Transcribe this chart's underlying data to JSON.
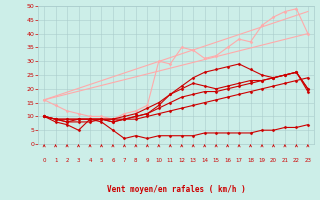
{
  "bg_color": "#cceee8",
  "grid_color": "#aacccc",
  "xlabel": "Vent moyen/en rafales ( km/h )",
  "xlabel_color": "#cc0000",
  "tick_color": "#cc0000",
  "xlim": [
    -0.5,
    23.5
  ],
  "ylim": [
    0,
    50
  ],
  "yticks": [
    0,
    5,
    10,
    15,
    20,
    25,
    30,
    35,
    40,
    45,
    50
  ],
  "xticks": [
    0,
    1,
    2,
    3,
    4,
    5,
    6,
    7,
    8,
    9,
    10,
    11,
    12,
    13,
    14,
    15,
    16,
    17,
    18,
    19,
    20,
    21,
    22,
    23
  ],
  "series": [
    {
      "x": [
        0,
        23
      ],
      "y": [
        16,
        40
      ],
      "color": "#ffaaaa",
      "lw": 0.8,
      "marker": null
    },
    {
      "x": [
        0,
        23
      ],
      "y": [
        16,
        48
      ],
      "color": "#ffaaaa",
      "lw": 0.8,
      "marker": null
    },
    {
      "x": [
        0,
        1,
        2,
        3,
        4,
        5,
        6,
        7,
        8,
        9,
        10,
        11,
        12,
        13,
        14,
        15,
        16,
        17,
        18,
        19,
        20,
        21,
        22,
        23
      ],
      "y": [
        16,
        14,
        12,
        11,
        10,
        10,
        9,
        11,
        12,
        14,
        30,
        29,
        35,
        34,
        31,
        32,
        35,
        38,
        37,
        43,
        46,
        48,
        49,
        40
      ],
      "color": "#ffaaaa",
      "lw": 0.8,
      "marker": "D",
      "ms": 1.5
    },
    {
      "x": [
        0,
        1,
        2,
        3,
        4,
        5,
        6,
        7,
        8,
        9,
        10,
        11,
        12,
        13,
        14,
        15,
        16,
        17,
        18,
        19,
        20,
        21,
        22,
        23
      ],
      "y": [
        10,
        8,
        7,
        5,
        9,
        8,
        5,
        2,
        3,
        2,
        3,
        3,
        3,
        3,
        4,
        4,
        4,
        4,
        4,
        5,
        5,
        6,
        6,
        7
      ],
      "color": "#cc0000",
      "lw": 0.8,
      "marker": "D",
      "ms": 1.5
    },
    {
      "x": [
        0,
        1,
        2,
        3,
        4,
        5,
        6,
        7,
        8,
        9,
        10,
        11,
        12,
        13,
        14,
        15,
        16,
        17,
        18,
        19,
        20,
        21,
        22,
        23
      ],
      "y": [
        10,
        9,
        9,
        9,
        9,
        9,
        9,
        9,
        10,
        11,
        13,
        15,
        17,
        18,
        19,
        19,
        20,
        21,
        22,
        23,
        24,
        25,
        26,
        19
      ],
      "color": "#cc0000",
      "lw": 0.8,
      "marker": "D",
      "ms": 1.5
    },
    {
      "x": [
        0,
        1,
        2,
        3,
        4,
        5,
        6,
        7,
        8,
        9,
        10,
        11,
        12,
        13,
        14,
        15,
        16,
        17,
        18,
        19,
        20,
        21,
        22,
        23
      ],
      "y": [
        10,
        9,
        8,
        8,
        8,
        9,
        8,
        9,
        10,
        11,
        14,
        18,
        20,
        22,
        21,
        20,
        21,
        22,
        23,
        23,
        24,
        25,
        26,
        20
      ],
      "color": "#cc0000",
      "lw": 0.8,
      "marker": "D",
      "ms": 1.5
    },
    {
      "x": [
        0,
        1,
        2,
        3,
        4,
        5,
        6,
        7,
        8,
        9,
        10,
        11,
        12,
        13,
        14,
        15,
        16,
        17,
        18,
        19,
        20,
        21,
        22,
        23
      ],
      "y": [
        10,
        9,
        9,
        9,
        9,
        9,
        9,
        10,
        11,
        13,
        15,
        18,
        21,
        24,
        26,
        27,
        28,
        29,
        27,
        25,
        24,
        25,
        26,
        20
      ],
      "color": "#cc0000",
      "lw": 0.8,
      "marker": "D",
      "ms": 1.5
    },
    {
      "x": [
        0,
        1,
        2,
        3,
        4,
        5,
        6,
        7,
        8,
        9,
        10,
        11,
        12,
        13,
        14,
        15,
        16,
        17,
        18,
        19,
        20,
        21,
        22,
        23
      ],
      "y": [
        10,
        9,
        8,
        9,
        9,
        9,
        8,
        9,
        9,
        10,
        11,
        12,
        13,
        14,
        15,
        16,
        17,
        18,
        19,
        20,
        21,
        22,
        23,
        24
      ],
      "color": "#cc0000",
      "lw": 0.8,
      "marker": "D",
      "ms": 1.5
    }
  ]
}
